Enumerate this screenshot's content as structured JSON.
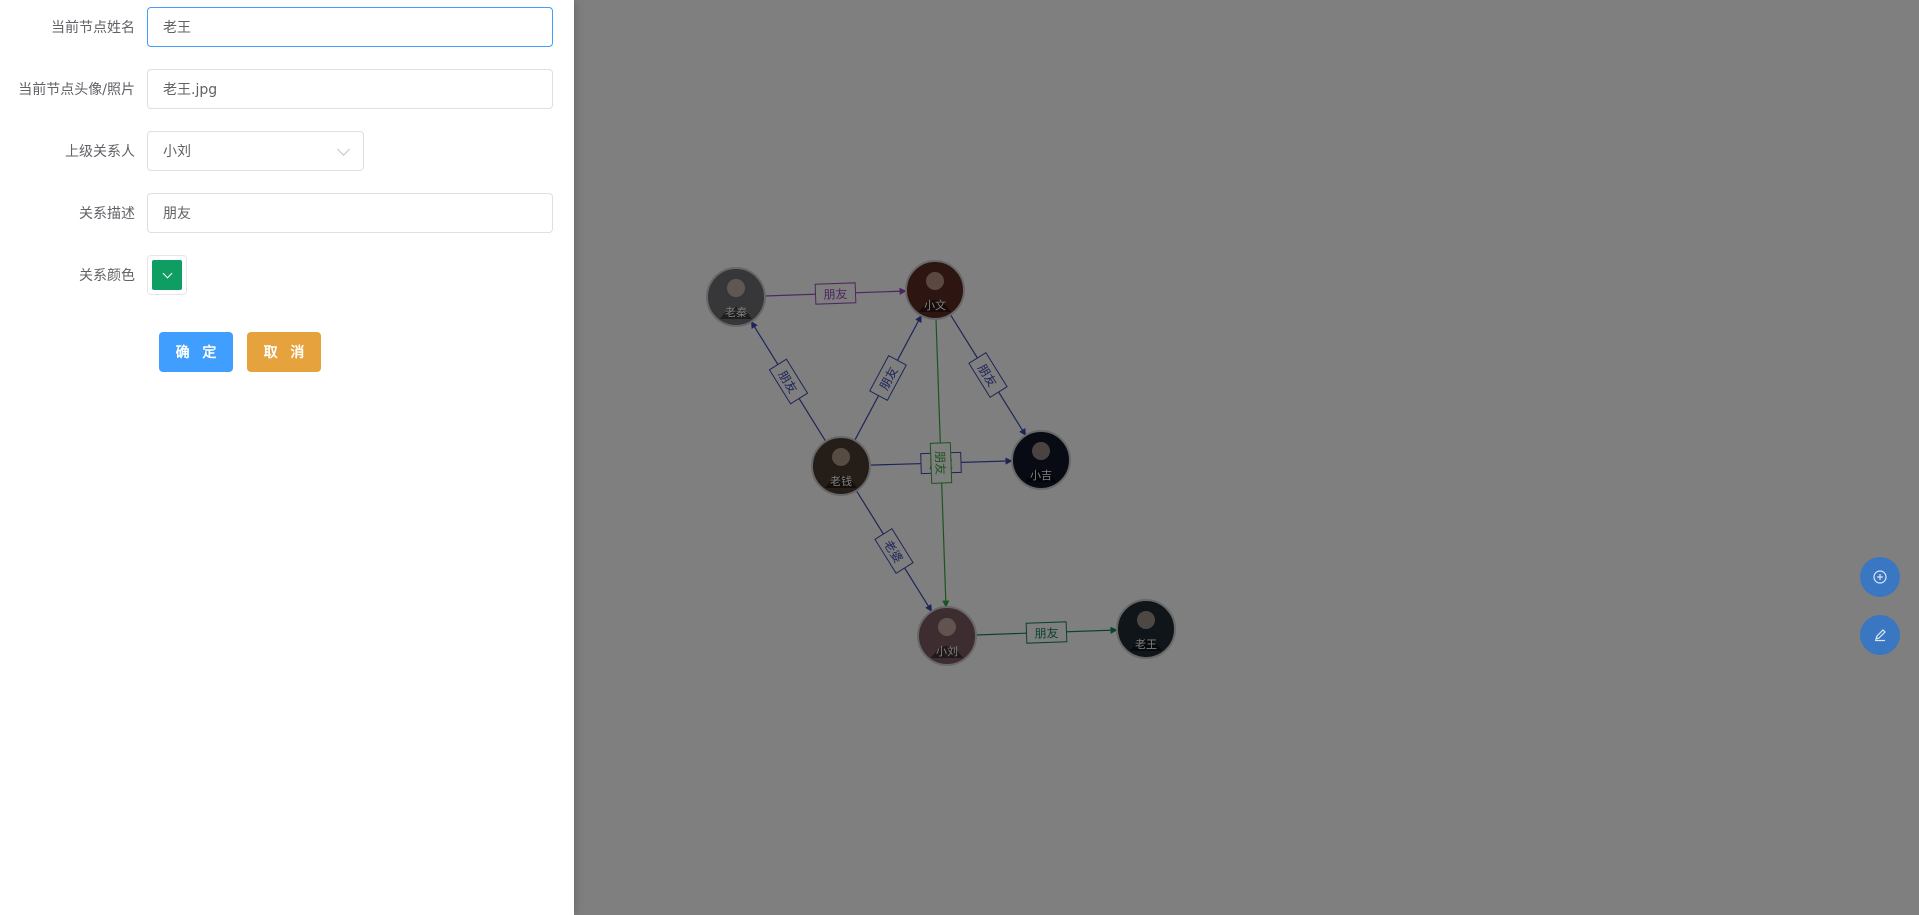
{
  "form": {
    "name_label": "当前节点姓名",
    "name_value": "老王",
    "avatar_label": "当前节点头像/照片",
    "avatar_value": "老王.jpg",
    "parent_label": "上级关系人",
    "parent_value": "小刘",
    "relation_label": "关系描述",
    "relation_value": "朋友",
    "color_label": "关系颜色",
    "color_value": "#0e9e64",
    "confirm_label": "确 定",
    "cancel_label": "取 消",
    "confirm_color": "#409eff",
    "cancel_color": "#e6a23c"
  },
  "graph": {
    "nodes": [
      {
        "id": "laoqin",
        "name": "老秦",
        "color": "#6e6e72"
      },
      {
        "id": "xiaowen",
        "name": "小文",
        "color": "#5a2a22"
      },
      {
        "id": "laoqian",
        "name": "老钱",
        "color": "#4a3a30"
      },
      {
        "id": "xiaoji",
        "name": "小吉",
        "color": "#101528"
      },
      {
        "id": "xiaoliu",
        "name": "小刘",
        "color": "#7a5a60"
      },
      {
        "id": "laowang",
        "name": "老王",
        "color": "#1f2a30"
      }
    ],
    "edges": [
      {
        "source": "laoqin",
        "target": "xiaowen",
        "label": "朋友",
        "color": "#9b4dbe"
      },
      {
        "source": "laoqian",
        "target": "laoqin",
        "label": "朋友",
        "color": "#3b4bb0"
      },
      {
        "source": "laoqian",
        "target": "xiaowen",
        "label": "朋友",
        "color": "#3b4bb0"
      },
      {
        "source": "xiaowen",
        "target": "xiaoji",
        "label": "朋友",
        "color": "#3b4bb0"
      },
      {
        "source": "laoqian",
        "target": "xiaoji",
        "label": "朋友",
        "color": "#3b4bb0"
      },
      {
        "source": "xiaowen",
        "target": "xiaoliu",
        "label": "朋友",
        "color": "#3aa83a"
      },
      {
        "source": "laoqian",
        "target": "xiaoliu",
        "label": "老婆",
        "color": "#3b4bb0"
      },
      {
        "source": "xiaoliu",
        "target": "laowang",
        "label": "朋友",
        "color": "#16855a"
      }
    ]
  },
  "fabs": [
    {
      "icon": "add-circle-icon"
    },
    {
      "icon": "edit-pen-icon"
    }
  ]
}
